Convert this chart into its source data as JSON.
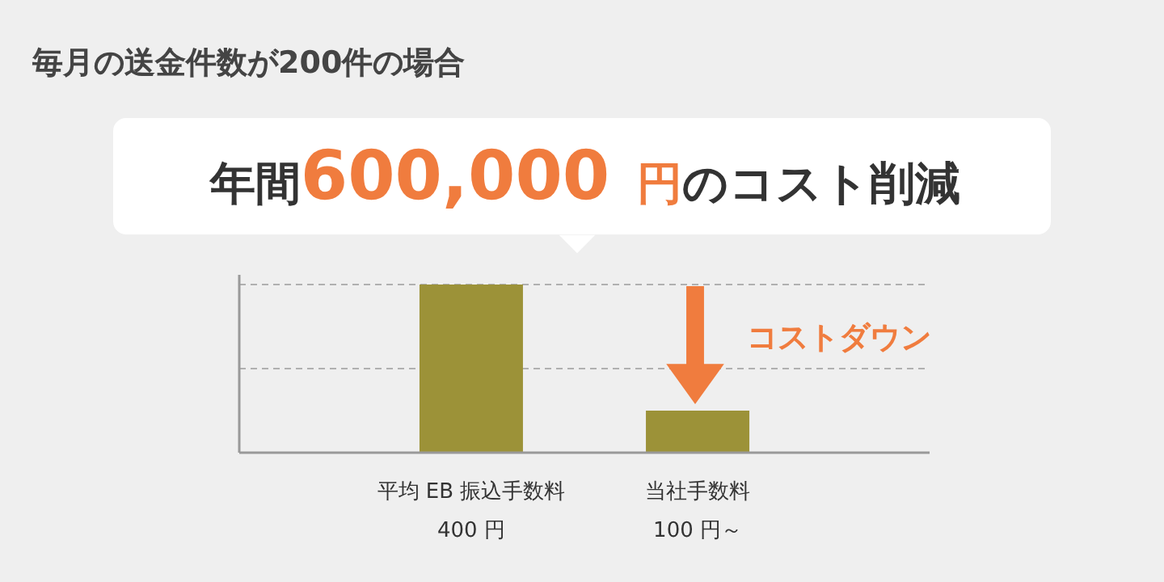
{
  "chart_data": {
    "type": "bar",
    "title": "毎月の送金件数が200件の場合",
    "subtitle": "年間600,000円のコスト削減",
    "categories": [
      "平均 EB 振込手数料",
      "当社手数料"
    ],
    "values": [
      400,
      100
    ],
    "value_labels": [
      "400 円",
      "100 円～"
    ],
    "ylim": [
      0,
      400
    ],
    "color": "#9c9238",
    "ref_lines": [
      {
        "axis": "y",
        "value": 200,
        "line_style": "dashed",
        "color": "#b0b0b0"
      },
      {
        "axis": "y",
        "value": 400,
        "line_style": "dashed",
        "color": "#b0b0b0"
      }
    ],
    "annotations": [
      "コストダウン"
    ]
  }
}
